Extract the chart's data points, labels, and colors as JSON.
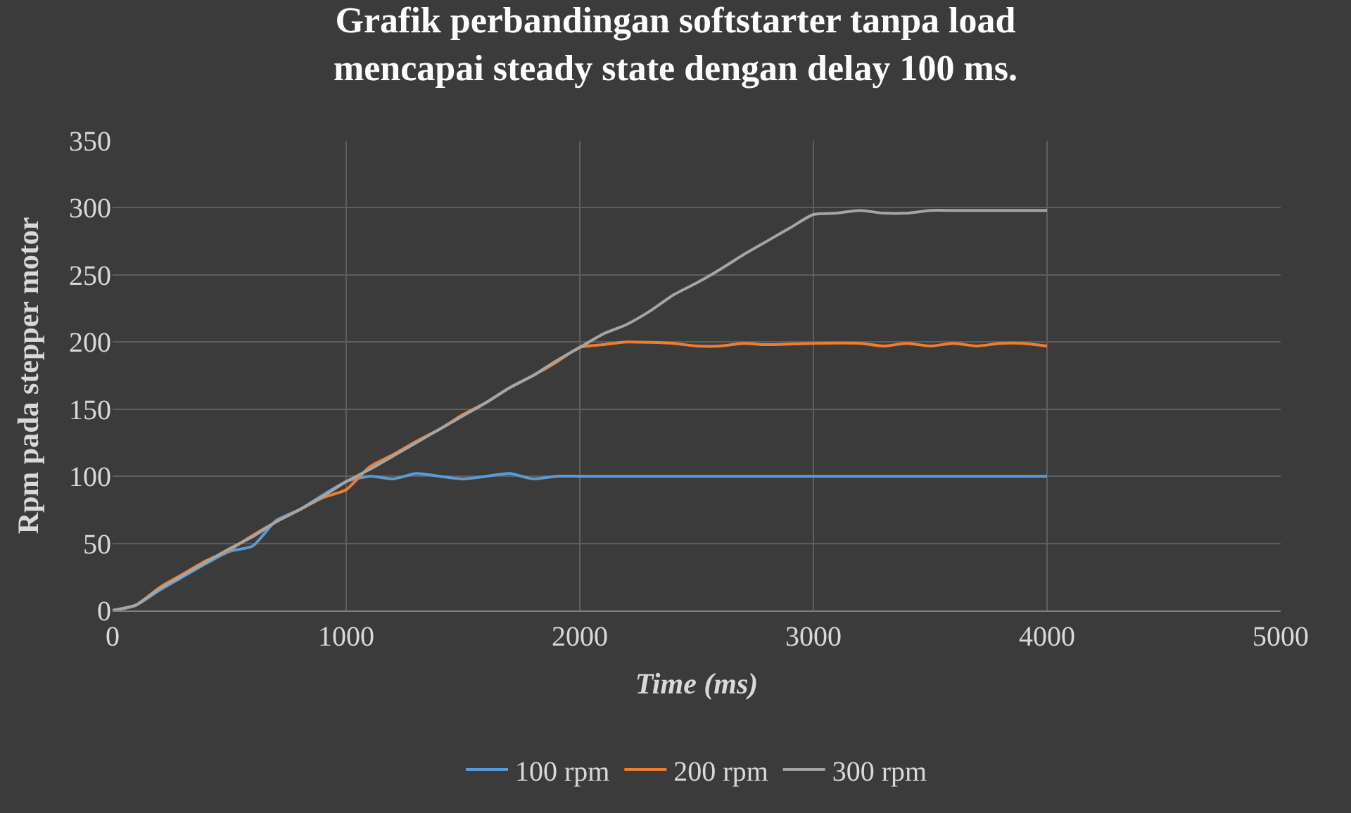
{
  "chart_data": {
    "type": "line",
    "title": "Grafik perbandingan softstarter tanpa load\nmencapai steady state dengan delay 100 ms.",
    "xlabel": "Time (ms)",
    "ylabel": "Rpm pada stepper motor",
    "xlim": [
      0,
      5000
    ],
    "xticks": [
      0,
      1000,
      2000,
      3000,
      4000,
      5000
    ],
    "ylim": [
      0,
      350
    ],
    "yticks": [
      0,
      50,
      100,
      150,
      200,
      250,
      300,
      350
    ],
    "grid": true,
    "legend": "bottom",
    "marker": "none",
    "line_style": "solid",
    "series": [
      {
        "name": "100 rpm",
        "color": "#5b9bd5",
        "x": [
          0,
          100,
          200,
          300,
          400,
          500,
          600,
          700,
          800,
          900,
          1000,
          1100,
          1200,
          1300,
          1400,
          1500,
          1600,
          1700,
          1800,
          1900,
          2000,
          2500,
          3000,
          3500,
          4000
        ],
        "values": [
          0,
          4,
          15,
          25,
          35,
          44,
          48,
          67,
          75,
          86,
          96,
          100,
          98,
          102,
          100,
          98,
          100,
          102,
          98,
          100,
          100,
          100,
          100,
          100,
          100
        ]
      },
      {
        "name": "200 rpm",
        "color": "#ed7d31",
        "x": [
          0,
          100,
          200,
          300,
          400,
          500,
          600,
          700,
          800,
          900,
          1000,
          1100,
          1200,
          1300,
          1400,
          1500,
          1600,
          1700,
          1800,
          1900,
          2000,
          2100,
          2200,
          2400,
          2500,
          2600,
          2700,
          2800,
          3000,
          3200,
          3300,
          3400,
          3500,
          3600,
          3700,
          3800,
          3900,
          4000
        ],
        "values": [
          0,
          4,
          17,
          27,
          37,
          45,
          56,
          66,
          75,
          84,
          90,
          107,
          116,
          126,
          135,
          146,
          155,
          166,
          175,
          185,
          196,
          198,
          200,
          199,
          197,
          197,
          199,
          198,
          199,
          199,
          197,
          199,
          197,
          199,
          197,
          199,
          199,
          197
        ]
      },
      {
        "name": "300 rpm",
        "color": "#a5a5a5",
        "x": [
          0,
          100,
          200,
          300,
          400,
          500,
          600,
          700,
          800,
          900,
          1000,
          1100,
          1200,
          1300,
          1400,
          1500,
          1600,
          1700,
          1800,
          1900,
          2000,
          2100,
          2200,
          2300,
          2400,
          2500,
          2600,
          2700,
          2800,
          2900,
          3000,
          3100,
          3200,
          3300,
          3400,
          3500,
          3600,
          3800,
          4000
        ],
        "values": [
          0,
          4,
          16,
          26,
          36,
          46,
          55,
          66,
          75,
          85,
          96,
          105,
          115,
          125,
          135,
          145,
          155,
          166,
          175,
          186,
          196,
          206,
          213,
          223,
          235,
          244,
          254,
          265,
          275,
          285,
          295,
          296,
          298,
          296,
          296,
          298,
          298,
          298,
          298
        ]
      }
    ]
  }
}
